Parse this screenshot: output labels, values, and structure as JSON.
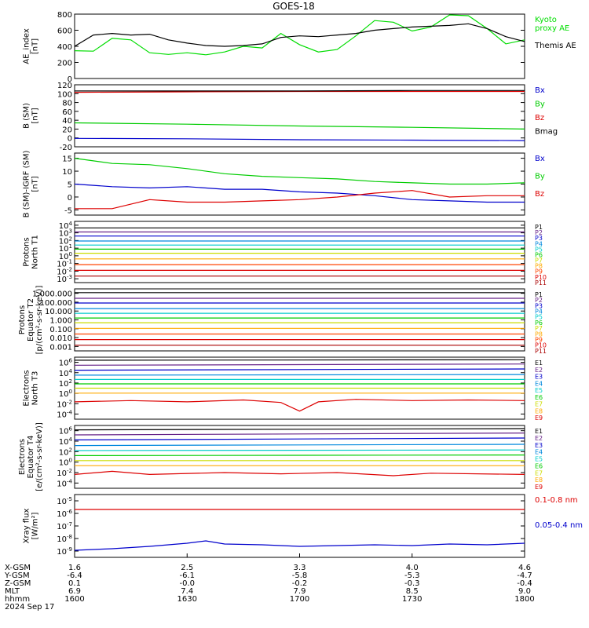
{
  "title": "GOES-18",
  "x_axis": {
    "rows": [
      {
        "label": "X-GSM",
        "values": [
          "1.6",
          "2.5",
          "3.3",
          "4.0",
          "4.6"
        ]
      },
      {
        "label": "Y-GSM",
        "values": [
          "-6.4",
          "-6.1",
          "-5.8",
          "-5.3",
          "-4.7"
        ]
      },
      {
        "label": "Z-GSM",
        "values": [
          "0.1",
          "-0.0",
          "-0.2",
          "-0.3",
          "-0.4"
        ]
      },
      {
        "label": "MLT",
        "values": [
          "6.9",
          "7.4",
          "7.9",
          "8.5",
          "9.0"
        ]
      },
      {
        "label": "hhmm",
        "values": [
          "1600",
          "1630",
          "1700",
          "1730",
          "1800"
        ]
      }
    ],
    "date": "2024 Sep 17"
  },
  "chart_data": [
    {
      "type": "line",
      "ylabel_lines": [
        "AE_index",
        "[nT]"
      ],
      "ylim": [
        0,
        800
      ],
      "ticks": [
        "0",
        "200",
        "400",
        "600",
        "800"
      ],
      "series": [
        {
          "name": "Kyoto proxy AE",
          "label_lines": [
            "Kyoto",
            "proxy AE"
          ],
          "color": "#00dd00",
          "x": [
            0,
            5,
            10,
            15,
            20,
            25,
            30,
            35,
            40,
            45,
            50,
            55,
            60,
            65,
            70,
            75,
            80,
            85,
            90,
            95,
            100,
            105,
            110,
            115,
            120
          ],
          "values": [
            345,
            340,
            500,
            480,
            320,
            300,
            320,
            295,
            330,
            400,
            380,
            560,
            420,
            330,
            360,
            530,
            720,
            700,
            590,
            640,
            790,
            780,
            620,
            430,
            480
          ]
        },
        {
          "name": "Themis AE",
          "label_lines": [
            "Themis AE"
          ],
          "color": "#000000",
          "x": [
            0,
            5,
            10,
            15,
            20,
            25,
            30,
            35,
            40,
            45,
            50,
            55,
            60,
            65,
            70,
            75,
            80,
            85,
            90,
            95,
            100,
            105,
            110,
            115,
            120
          ],
          "values": [
            400,
            540,
            560,
            540,
            550,
            480,
            440,
            410,
            400,
            410,
            430,
            510,
            530,
            520,
            540,
            560,
            600,
            620,
            640,
            650,
            660,
            680,
            620,
            520,
            460
          ]
        }
      ]
    },
    {
      "type": "line",
      "ylabel_lines": [
        "B (SM)",
        "[nT]"
      ],
      "ylim": [
        -20,
        120
      ],
      "ticks": [
        "-20",
        "0",
        "20",
        "40",
        "60",
        "80",
        "100",
        "120"
      ],
      "series": [
        {
          "name": "Bx",
          "label_lines": [
            "Bx"
          ],
          "color": "#0000cc",
          "x": [
            0,
            30,
            60,
            90,
            120
          ],
          "values": [
            -1,
            -2,
            -4,
            -5,
            -6
          ]
        },
        {
          "name": "By",
          "label_lines": [
            "By"
          ],
          "color": "#00cc00",
          "x": [
            0,
            30,
            60,
            90,
            120
          ],
          "values": [
            34,
            31,
            27,
            24,
            20
          ]
        },
        {
          "name": "Bz",
          "label_lines": [
            "Bz"
          ],
          "color": "#dd0000",
          "x": [
            0,
            30,
            60,
            90,
            120
          ],
          "values": [
            103,
            104,
            105,
            105,
            105
          ]
        },
        {
          "name": "Bmag",
          "label_lines": [
            "Bmag"
          ],
          "color": "#000000",
          "x": [
            0,
            30,
            60,
            90,
            120
          ],
          "values": [
            106,
            106,
            106,
            107,
            107
          ]
        }
      ]
    },
    {
      "type": "line",
      "ylabel_lines": [
        "B (SM)-IGRF (SM)",
        "[nT]"
      ],
      "ylim": [
        -7,
        17
      ],
      "ticks": [
        "-5",
        "0",
        "5",
        "10",
        "15"
      ],
      "series": [
        {
          "name": "Bx",
          "label_lines": [
            "Bx"
          ],
          "color": "#0000cc",
          "x": [
            0,
            10,
            20,
            30,
            40,
            50,
            60,
            70,
            80,
            90,
            100,
            110,
            120
          ],
          "values": [
            5,
            4,
            3.5,
            4,
            3,
            3,
            2,
            1.5,
            0.5,
            -1,
            -1.5,
            -2,
            -2
          ]
        },
        {
          "name": "By",
          "label_lines": [
            "By"
          ],
          "color": "#00cc00",
          "x": [
            0,
            10,
            20,
            30,
            40,
            50,
            60,
            70,
            80,
            90,
            100,
            110,
            120
          ],
          "values": [
            15,
            13,
            12.5,
            11,
            9,
            8,
            7.5,
            7,
            6,
            5.5,
            5,
            5,
            5.5
          ]
        },
        {
          "name": "Bz",
          "label_lines": [
            "Bz"
          ],
          "color": "#dd0000",
          "x": [
            0,
            10,
            20,
            30,
            40,
            50,
            60,
            70,
            80,
            90,
            100,
            110,
            120
          ],
          "values": [
            -4.5,
            -4.5,
            -1,
            -2,
            -2,
            -1.5,
            -1,
            0,
            1.5,
            2.5,
            0,
            0.5,
            0.5
          ]
        }
      ]
    },
    {
      "type": "line",
      "log": true,
      "ylabel_lines": [
        "Protons",
        "North T1"
      ],
      "ylim": [
        -3.5,
        4
      ],
      "ticks": [
        "10^4",
        "10^3",
        "10^2",
        "10^1",
        "10^0",
        "10^-1",
        "10^-2",
        "10^-3"
      ],
      "series": [
        {
          "name": "P1",
          "color": "#000000",
          "x": [
            0,
            120
          ],
          "values": [
            3.2,
            3.2
          ]
        },
        {
          "name": "P2",
          "color": "#662288",
          "x": [
            0,
            120
          ],
          "values": [
            2.7,
            2.7
          ]
        },
        {
          "name": "P3",
          "color": "#0000cc",
          "x": [
            0,
            120
          ],
          "values": [
            2.2,
            2.2
          ]
        },
        {
          "name": "P4",
          "color": "#0088dd",
          "x": [
            0,
            120
          ],
          "values": [
            1.6,
            1.6
          ]
        },
        {
          "name": "P5",
          "color": "#00cccc",
          "x": [
            0,
            120
          ],
          "values": [
            1.1,
            1.1
          ]
        },
        {
          "name": "P6",
          "color": "#00cc00",
          "x": [
            0,
            120
          ],
          "values": [
            0.6,
            0.6
          ]
        },
        {
          "name": "P7",
          "color": "#ccdd00",
          "x": [
            0,
            120
          ],
          "values": [
            0.1,
            0.1
          ]
        },
        {
          "name": "P8",
          "color": "#ffaa00",
          "x": [
            0,
            120
          ],
          "values": [
            -0.6,
            -0.6
          ]
        },
        {
          "name": "P9",
          "color": "#ff4400",
          "x": [
            0,
            120
          ],
          "values": [
            -1.3,
            -1.3
          ]
        },
        {
          "name": "P10",
          "color": "#dd0000",
          "x": [
            0,
            120
          ],
          "values": [
            -2.0,
            -2.0
          ]
        },
        {
          "name": "P11",
          "color": "#aa0000",
          "x": [
            0,
            120
          ],
          "values": [
            -2.7,
            -2.7
          ]
        }
      ]
    },
    {
      "type": "line",
      "log": true,
      "ylabel_lines": [
        "Protons",
        "Equator T2",
        "[p/(cm²-s-sr-keV)]"
      ],
      "ylim": [
        -3.2,
        3.4
      ],
      "ticks": [
        "1,000.000",
        "100.000",
        "10.000",
        "1.000",
        "0.100",
        "0.010",
        "0.001"
      ],
      "series": [
        {
          "name": "P1",
          "color": "#000000",
          "x": [
            0,
            120
          ],
          "values": [
            3.0,
            3.0
          ]
        },
        {
          "name": "P2",
          "color": "#662288",
          "x": [
            0,
            120
          ],
          "values": [
            2.4,
            2.4
          ]
        },
        {
          "name": "P3",
          "color": "#0000cc",
          "x": [
            0,
            120
          ],
          "values": [
            1.9,
            1.9
          ]
        },
        {
          "name": "P4",
          "color": "#0088dd",
          "x": [
            0,
            120
          ],
          "values": [
            1.3,
            1.3
          ]
        },
        {
          "name": "P5",
          "color": "#00cccc",
          "x": [
            0,
            120
          ],
          "values": [
            0.8,
            0.8
          ]
        },
        {
          "name": "P6",
          "color": "#00cc00",
          "x": [
            0,
            120
          ],
          "values": [
            0.3,
            0.3
          ]
        },
        {
          "name": "P7",
          "color": "#ccdd00",
          "x": [
            0,
            120
          ],
          "values": [
            -0.2,
            -0.2
          ]
        },
        {
          "name": "P8",
          "color": "#ffaa00",
          "x": [
            0,
            120
          ],
          "values": [
            -0.8,
            -0.8
          ]
        },
        {
          "name": "P9",
          "color": "#ff4400",
          "x": [
            0,
            120
          ],
          "values": [
            -1.4,
            -1.4
          ]
        },
        {
          "name": "P10",
          "color": "#dd0000",
          "x": [
            0,
            120
          ],
          "values": [
            -2.0,
            -2.0
          ]
        },
        {
          "name": "P11",
          "color": "#aa0000",
          "x": [
            0,
            120
          ],
          "values": [
            -2.6,
            -2.6
          ]
        }
      ]
    },
    {
      "type": "line",
      "log": true,
      "ylabel_lines": [
        "Electrons",
        "North T3"
      ],
      "ylim": [
        -4,
        6
      ],
      "ticks": [
        "10^6",
        "10^4",
        "10^2",
        "10^0",
        "10^-2",
        "10^-4"
      ],
      "series": [
        {
          "name": "E1",
          "color": "#000000",
          "x": [
            0,
            120
          ],
          "values": [
            5.5,
            5.6
          ]
        },
        {
          "name": "E2",
          "color": "#662288",
          "x": [
            0,
            120
          ],
          "values": [
            4.7,
            4.9
          ]
        },
        {
          "name": "E3",
          "color": "#0000cc",
          "x": [
            0,
            120
          ],
          "values": [
            3.9,
            4.1
          ]
        },
        {
          "name": "E4",
          "color": "#0088dd",
          "x": [
            0,
            120
          ],
          "values": [
            3.1,
            3.2
          ]
        },
        {
          "name": "E5",
          "color": "#00cccc",
          "x": [
            0,
            120
          ],
          "values": [
            2.4,
            2.4
          ]
        },
        {
          "name": "E6",
          "color": "#00cc00",
          "x": [
            0,
            120
          ],
          "values": [
            1.7,
            1.7
          ]
        },
        {
          "name": "E7",
          "color": "#ccdd00",
          "x": [
            0,
            120
          ],
          "values": [
            1.0,
            1.0
          ]
        },
        {
          "name": "E8",
          "color": "#ffaa00",
          "x": [
            0,
            120
          ],
          "values": [
            0.2,
            0.2
          ]
        },
        {
          "name": "E9",
          "color": "#dd0000",
          "x": [
            0,
            15,
            30,
            45,
            55,
            60,
            65,
            75,
            90,
            105,
            120
          ],
          "values": [
            -1.2,
            -1.0,
            -1.2,
            -0.9,
            -1.3,
            -2.7,
            -1.2,
            -0.8,
            -1.0,
            -0.9,
            -1.0
          ]
        }
      ]
    },
    {
      "type": "line",
      "log": true,
      "ylabel_lines": [
        "Electrons",
        "Equator T4",
        "[e/(cm²-s-sr-keV)]"
      ],
      "ylim": [
        -4,
        6
      ],
      "ticks": [
        "10^6",
        "10^4",
        "10^2",
        "10^0",
        "10^-2",
        "10^-4"
      ],
      "series": [
        {
          "name": "E1",
          "color": "#000000",
          "x": [
            0,
            120
          ],
          "values": [
            5.3,
            5.5
          ]
        },
        {
          "name": "E2",
          "color": "#662288",
          "x": [
            0,
            120
          ],
          "values": [
            4.5,
            4.8
          ]
        },
        {
          "name": "E3",
          "color": "#0000cc",
          "x": [
            0,
            120
          ],
          "values": [
            3.7,
            4.0
          ]
        },
        {
          "name": "E4",
          "color": "#0088dd",
          "x": [
            0,
            120
          ],
          "values": [
            2.8,
            3.0
          ]
        },
        {
          "name": "E5",
          "color": "#00cccc",
          "x": [
            0,
            120
          ],
          "values": [
            2.0,
            2.1
          ]
        },
        {
          "name": "E6",
          "color": "#00cc00",
          "x": [
            0,
            120
          ],
          "values": [
            1.2,
            1.3
          ]
        },
        {
          "name": "E7",
          "color": "#ccdd00",
          "x": [
            0,
            120
          ],
          "values": [
            0.4,
            0.4
          ]
        },
        {
          "name": "E8",
          "color": "#ffaa00",
          "x": [
            0,
            120
          ],
          "values": [
            -0.4,
            -0.4
          ]
        },
        {
          "name": "E9",
          "color": "#dd0000",
          "x": [
            0,
            10,
            20,
            40,
            55,
            70,
            85,
            95,
            120
          ],
          "values": [
            -1.8,
            -1.3,
            -1.8,
            -1.5,
            -1.7,
            -1.5,
            -2.0,
            -1.6,
            -1.8
          ]
        }
      ]
    },
    {
      "type": "line",
      "log": true,
      "ylabel_lines": [
        "Xray flux",
        "[W/m²]"
      ],
      "ylim": [
        -9,
        -5
      ],
      "ticks": [
        "10^-5",
        "10^-6",
        "10^-7",
        "10^-8",
        "10^-9"
      ],
      "series": [
        {
          "name": "0.1-0.8 nm",
          "label_lines": [
            "0.1-0.8 nm"
          ],
          "color": "#dd0000",
          "x": [
            0,
            120
          ],
          "values": [
            -5.95,
            -5.95
          ]
        },
        {
          "name": "0.05-0.4 nm",
          "label_lines": [
            "0.05-0.4 nm"
          ],
          "color": "#0000cc",
          "x": [
            0,
            10,
            20,
            30,
            35,
            40,
            50,
            60,
            70,
            80,
            90,
            100,
            110,
            120
          ],
          "values": [
            -8.55,
            -8.45,
            -8.3,
            -8.1,
            -7.95,
            -8.15,
            -8.2,
            -8.3,
            -8.25,
            -8.2,
            -8.25,
            -8.15,
            -8.2,
            -8.1
          ]
        }
      ]
    }
  ]
}
